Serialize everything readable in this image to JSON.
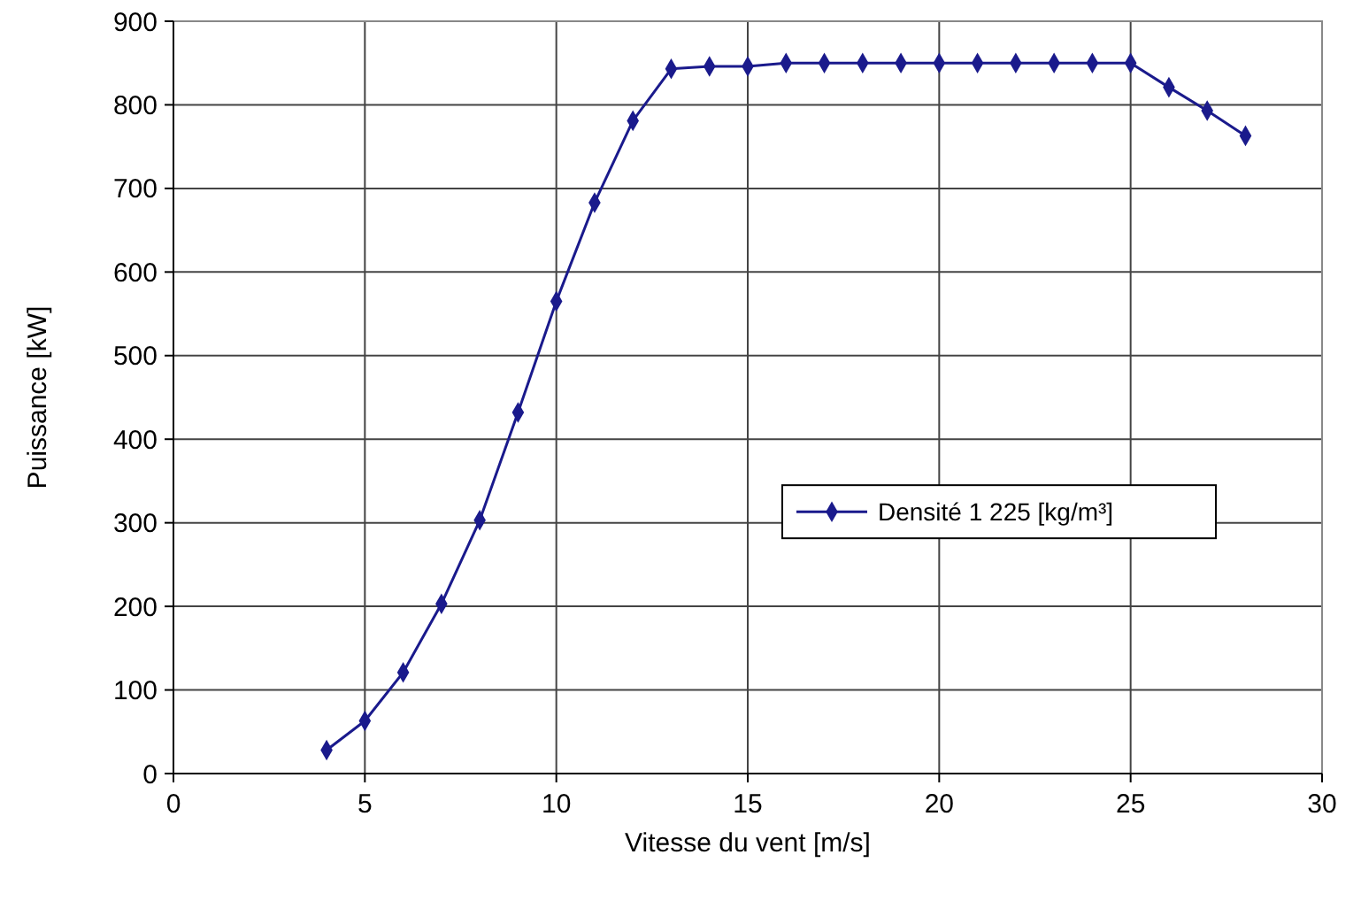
{
  "chart_data": {
    "type": "line",
    "xlabel": "Vitesse du vent [m/s]",
    "ylabel": "Puissance [kW]",
    "x": [
      4,
      5,
      6,
      7,
      8,
      9,
      10,
      11,
      12,
      13,
      14,
      15,
      16,
      17,
      18,
      19,
      20,
      21,
      22,
      23,
      24,
      25,
      26,
      27,
      28
    ],
    "series": [
      {
        "name": "Densité 1 225 [kg/m³]",
        "color": "#1a1a8c",
        "values": [
          28,
          63,
          121,
          203,
          303,
          432,
          565,
          683,
          781,
          843,
          846,
          846,
          850,
          850,
          850,
          850,
          850,
          850,
          850,
          850,
          850,
          850,
          821,
          793,
          763
        ]
      }
    ],
    "xlim": [
      0,
      30
    ],
    "xticks": [
      0,
      5,
      10,
      15,
      20,
      25,
      30
    ],
    "ylim": [
      0,
      900
    ],
    "yticks": [
      0,
      100,
      200,
      300,
      400,
      500,
      600,
      700,
      800,
      900
    ],
    "grid": true,
    "legend": "right",
    "marker": "diamond",
    "line_style": "solid"
  }
}
